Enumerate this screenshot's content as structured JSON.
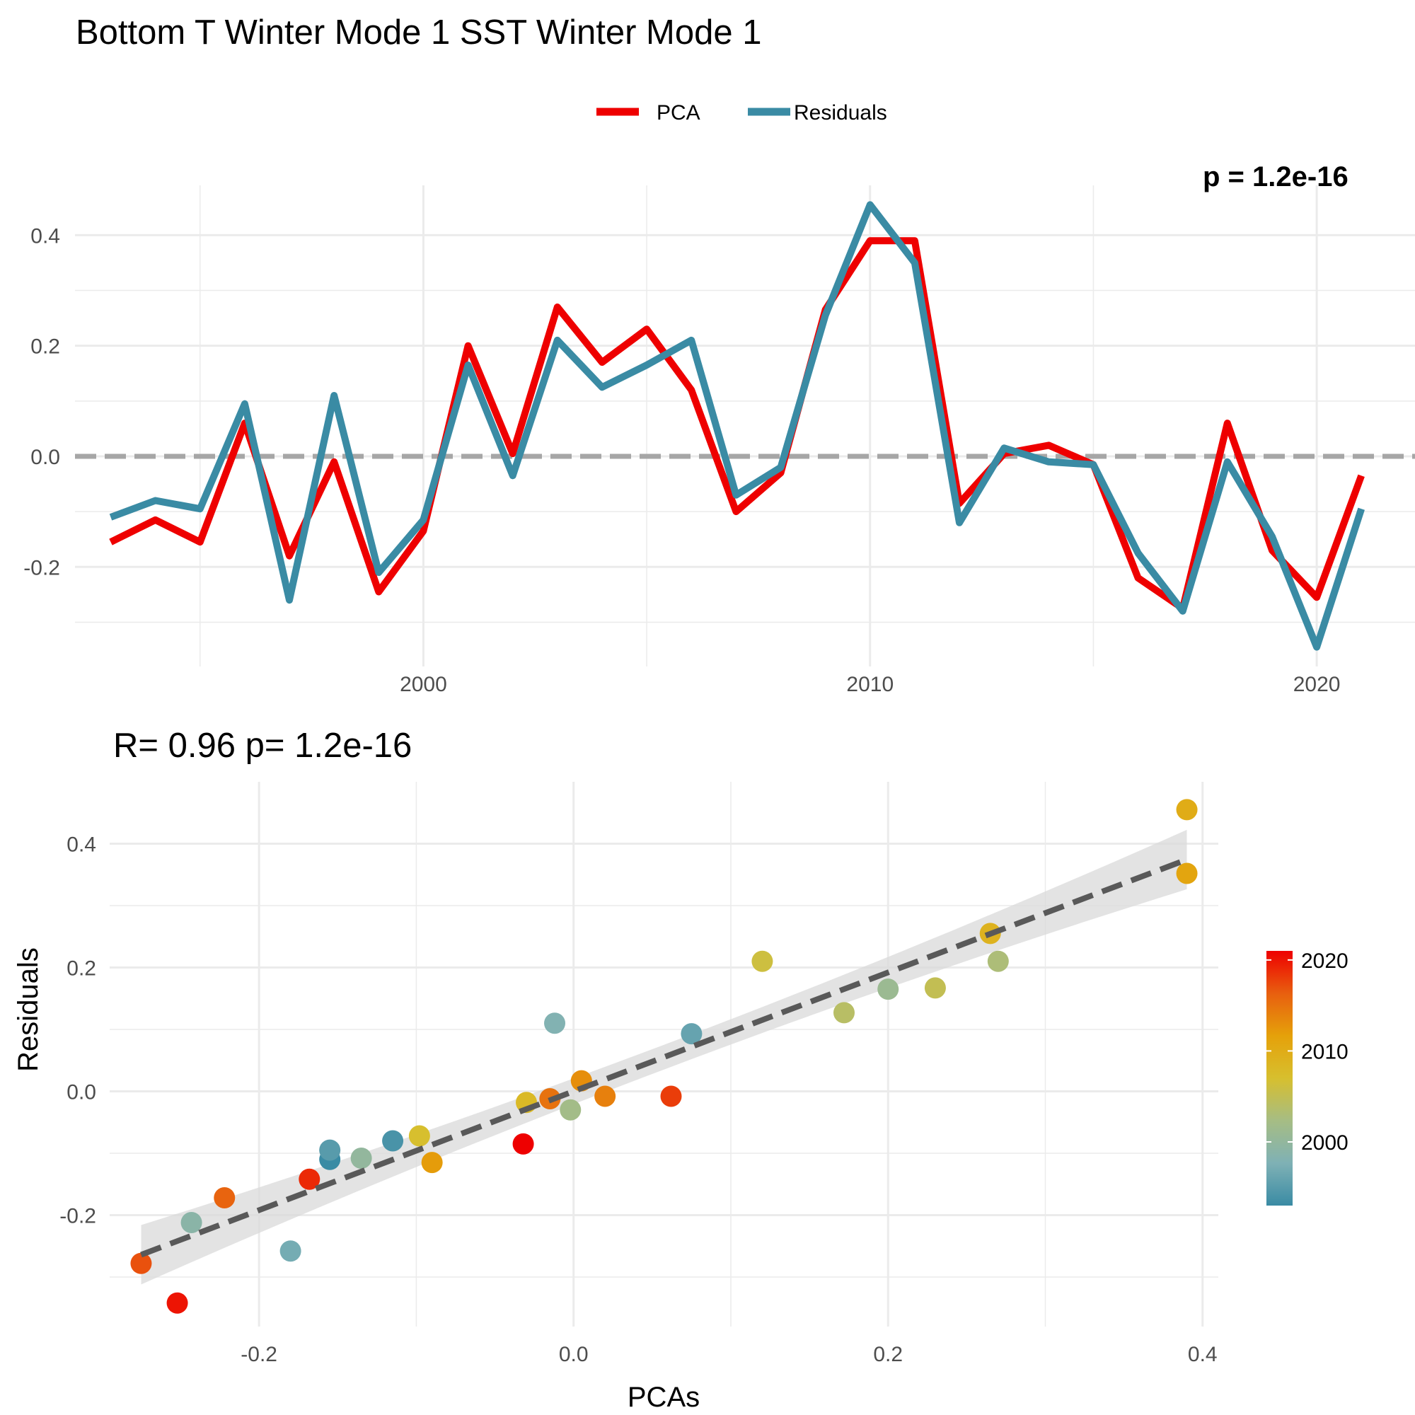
{
  "title": "Bottom T Winter Mode 1 SST Winter Mode 1",
  "legend": [
    {
      "label": "PCA",
      "color": "#EE0000"
    },
    {
      "label": "Residuals",
      "color": "#3A8BA4"
    }
  ],
  "colors": {
    "pca": "#EE0000",
    "residuals": "#3A8BA4",
    "zero_line": "#A6A6A6",
    "grid": "#EBEBEB",
    "fit_line": "#595959",
    "ribbon": "#D9D9D9"
  },
  "chart_data": [
    {
      "type": "line",
      "corner_label": "p = 1.2e-16",
      "x": [
        1993,
        1994,
        1995,
        1996,
        1997,
        1998,
        1999,
        2000,
        2001,
        2002,
        2003,
        2004,
        2005,
        2006,
        2007,
        2008,
        2009,
        2010,
        2011,
        2012,
        2013,
        2014,
        2015,
        2016,
        2017,
        2018,
        2019,
        2020,
        2021
      ],
      "series": [
        {
          "name": "PCA",
          "color": "#EE0000",
          "values": [
            -0.155,
            -0.115,
            -0.155,
            0.06,
            -0.18,
            -0.01,
            -0.245,
            -0.135,
            0.2,
            0.005,
            0.27,
            0.17,
            0.23,
            0.12,
            -0.1,
            -0.03,
            0.265,
            0.39,
            0.39,
            -0.085,
            0.005,
            0.02,
            -0.015,
            -0.22,
            -0.275,
            0.06,
            -0.17,
            -0.255,
            -0.035
          ]
        },
        {
          "name": "Residuals",
          "color": "#3A8BA4",
          "values": [
            -0.11,
            -0.08,
            -0.095,
            0.095,
            -0.26,
            0.11,
            -0.21,
            -0.115,
            0.165,
            -0.035,
            0.21,
            0.125,
            0.165,
            0.21,
            -0.07,
            -0.02,
            0.255,
            0.455,
            0.35,
            -0.12,
            0.015,
            -0.01,
            -0.015,
            -0.175,
            -0.28,
            -0.01,
            -0.145,
            -0.345,
            -0.095
          ]
        }
      ],
      "reference_line_y": 0.0,
      "x_ticks": [
        2000,
        2010,
        2020
      ],
      "y_ticks": [
        -0.2,
        0.0,
        0.2,
        0.4
      ],
      "y_tick_labels": [
        "-0.2",
        "0.0",
        "0.2",
        "0.4"
      ],
      "xlim": [
        1992.2,
        2022.2
      ],
      "ylim": [
        -0.38,
        0.49
      ],
      "grid": true,
      "legend_position": "top"
    },
    {
      "type": "scatter",
      "title": "R= 0.96  p= 1.2e-16",
      "xlabel": "PCAs",
      "ylabel": "Residuals",
      "x_ticks": [
        -0.2,
        0.0,
        0.2,
        0.4
      ],
      "x_tick_labels": [
        "-0.2",
        "0.0",
        "0.2",
        "0.4"
      ],
      "y_ticks": [
        -0.2,
        0.0,
        0.2,
        0.4
      ],
      "y_tick_labels": [
        "-0.2",
        "0.0",
        "0.2",
        "0.4"
      ],
      "xlim": [
        -0.295,
        0.41
      ],
      "ylim": [
        -0.38,
        0.5
      ],
      "grid": true,
      "color_by": "year",
      "colorbar": {
        "ticks": [
          2000,
          2010,
          2020
        ],
        "range": [
          1993,
          2021
        ],
        "stops": [
          "#3A8BA4",
          "#7FB1B5",
          "#A6BD84",
          "#D7BF2E",
          "#E5A10A",
          "#E85F0F",
          "#EE0000"
        ],
        "position": "right"
      },
      "fit": {
        "intercept": 0.0,
        "slope": 0.96,
        "x_range": [
          -0.275,
          0.39
        ],
        "ribbon_halfwidth_ends": 0.048,
        "ribbon_halfwidth_center": 0.02
      },
      "points": [
        {
          "year": 1993,
          "pca": -0.155,
          "res": -0.11
        },
        {
          "year": 1994,
          "pca": -0.115,
          "res": -0.08
        },
        {
          "year": 1995,
          "pca": -0.155,
          "res": -0.095
        },
        {
          "year": 1996,
          "pca": 0.075,
          "res": 0.093
        },
        {
          "year": 1997,
          "pca": -0.18,
          "res": -0.258
        },
        {
          "year": 1998,
          "pca": -0.012,
          "res": 0.11
        },
        {
          "year": 1999,
          "pca": -0.243,
          "res": -0.212
        },
        {
          "year": 2000,
          "pca": -0.135,
          "res": -0.108
        },
        {
          "year": 2001,
          "pca": 0.2,
          "res": 0.165
        },
        {
          "year": 2002,
          "pca": -0.002,
          "res": -0.03
        },
        {
          "year": 2003,
          "pca": 0.27,
          "res": 0.21
        },
        {
          "year": 2004,
          "pca": 0.172,
          "res": 0.127
        },
        {
          "year": 2005,
          "pca": 0.23,
          "res": 0.167
        },
        {
          "year": 2006,
          "pca": 0.12,
          "res": 0.21
        },
        {
          "year": 2007,
          "pca": -0.098,
          "res": -0.072
        },
        {
          "year": 2008,
          "pca": -0.03,
          "res": -0.018
        },
        {
          "year": 2009,
          "pca": 0.265,
          "res": 0.255
        },
        {
          "year": 2010,
          "pca": 0.39,
          "res": 0.455
        },
        {
          "year": 2011,
          "pca": 0.39,
          "res": 0.352
        },
        {
          "year": 2012,
          "pca": -0.09,
          "res": -0.115
        },
        {
          "year": 2013,
          "pca": 0.005,
          "res": 0.017
        },
        {
          "year": 2014,
          "pca": 0.02,
          "res": -0.008
        },
        {
          "year": 2015,
          "pca": -0.015,
          "res": -0.012
        },
        {
          "year": 2016,
          "pca": -0.222,
          "res": -0.172
        },
        {
          "year": 2017,
          "pca": -0.275,
          "res": -0.278
        },
        {
          "year": 2018,
          "pca": 0.062,
          "res": -0.008
        },
        {
          "year": 2019,
          "pca": -0.168,
          "res": -0.142
        },
        {
          "year": 2020,
          "pca": -0.252,
          "res": -0.342
        },
        {
          "year": 2021,
          "pca": -0.032,
          "res": -0.085
        }
      ]
    }
  ]
}
